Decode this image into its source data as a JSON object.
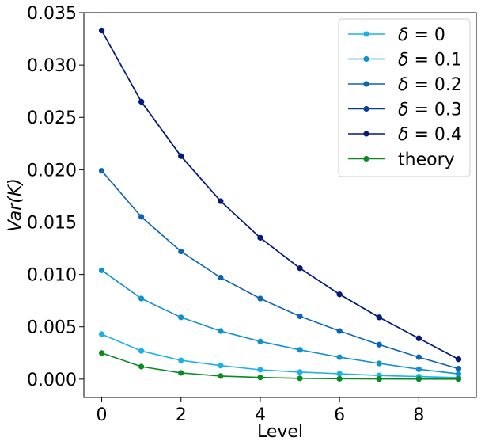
{
  "chart_data": {
    "type": "line",
    "xlabel": "Level",
    "ylabel": "Var(K)",
    "xlim": [
      -0.45,
      9.45
    ],
    "ylim": [
      -0.00175,
      0.035
    ],
    "xticks": [
      0,
      2,
      4,
      6,
      8
    ],
    "xtick_labels": [
      "0",
      "2",
      "4",
      "6",
      "8"
    ],
    "yticks": [
      0.0,
      0.005,
      0.01,
      0.015,
      0.02,
      0.025,
      0.03,
      0.035
    ],
    "ytick_labels": [
      "0.000",
      "0.005",
      "0.010",
      "0.015",
      "0.020",
      "0.025",
      "0.030",
      "0.035"
    ],
    "grid": false,
    "legend_position": "top-right",
    "x": [
      0,
      1,
      2,
      3,
      4,
      5,
      6,
      7,
      8,
      9
    ],
    "series": [
      {
        "name": "δ =  0",
        "label_sym": "δ",
        "label_rest": " =  0",
        "color": "#1ab2e6",
        "values": [
          0.0043,
          0.0027,
          0.0018,
          0.0013,
          0.0009,
          0.00068,
          0.00052,
          0.00035,
          0.00025,
          0.00015
        ]
      },
      {
        "name": "δ =  0.1",
        "label_sym": "δ",
        "label_rest": " =  0.1",
        "color": "#1090d0",
        "values": [
          0.0104,
          0.0077,
          0.0059,
          0.0046,
          0.0036,
          0.0028,
          0.0021,
          0.0015,
          0.00095,
          0.0005
        ]
      },
      {
        "name": "δ =  0.2",
        "label_sym": "δ",
        "label_rest": " =  0.2",
        "color": "#0a64b8",
        "values": [
          0.0199,
          0.0155,
          0.0122,
          0.0097,
          0.0077,
          0.006,
          0.0046,
          0.0033,
          0.0021,
          0.001
        ]
      },
      {
        "name": "δ =  0.3",
        "label_sym": "δ",
        "label_rest": " =  0.3",
        "color": "#073c9a",
        "values": [
          0.0333,
          0.0265,
          0.0213,
          0.017,
          0.0135,
          0.0106,
          0.0081,
          0.0059,
          0.0039,
          0.0019
        ]
      },
      {
        "name": "δ =  0.4",
        "label_sym": "δ",
        "label_rest": " =  0.4",
        "color": "#041a7a",
        "values": [
          0.0333,
          0.0265,
          0.0213,
          0.017,
          0.0135,
          0.0106,
          0.0081,
          0.0059,
          0.0039,
          0.0019
        ]
      },
      {
        "name": "theory",
        "label_sym": "",
        "label_rest": "theory",
        "color": "#0a8a23",
        "values": [
          0.0025,
          0.0012,
          0.0006,
          0.0003,
          0.00016,
          8e-05,
          4e-05,
          2e-05,
          1e-05,
          5e-06
        ]
      }
    ]
  }
}
